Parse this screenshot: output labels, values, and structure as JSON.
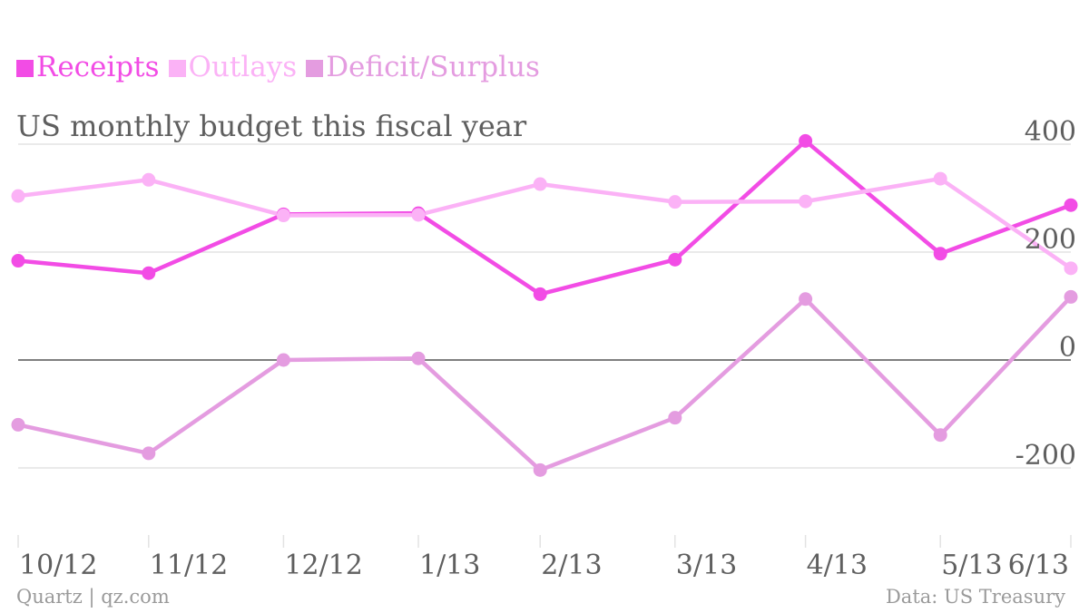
{
  "colors": {
    "receipts": "#f24ce5",
    "outlays": "#fbb2f6",
    "deficit": "#e49ce0",
    "grid": "#e3e3e3",
    "zero_line": "#555555",
    "text": "#5f5f5f",
    "source": "#9a9a9a"
  },
  "footer": {
    "left": "Quartz | qz.com",
    "right": "Data: US Treasury"
  },
  "chart_data": {
    "type": "line",
    "title": "US monthly budget this fiscal year",
    "categories": [
      "10/12",
      "11/12",
      "12/12",
      "1/13",
      "2/13",
      "3/13",
      "4/13",
      "5/13",
      "6/13"
    ],
    "x_dates": [
      "2012-10-31",
      "2012-11-30",
      "2012-12-31",
      "2013-01-31",
      "2013-02-28",
      "2013-03-31",
      "2013-04-30",
      "2013-05-31",
      "2013-06-30"
    ],
    "y_ticks": [
      400,
      200,
      0,
      -200
    ],
    "y_tick_labels": [
      "400",
      "200",
      "0",
      "-200"
    ],
    "ylim": [
      -320,
      420
    ],
    "grid": true,
    "legend_position": "top-left",
    "series": [
      {
        "name": "Receipts",
        "color_key": "receipts",
        "values": [
          184,
          161,
          270,
          272,
          122,
          186,
          406,
          197,
          287
        ]
      },
      {
        "name": "Outlays",
        "color_key": "outlays",
        "values": [
          304,
          334,
          268,
          269,
          326,
          293,
          294,
          336,
          170
        ]
      },
      {
        "name": "Deficit/Surplus",
        "color_key": "deficit",
        "values": [
          -120,
          -173,
          0,
          3,
          -204,
          -107,
          113,
          -139,
          117
        ]
      }
    ]
  }
}
